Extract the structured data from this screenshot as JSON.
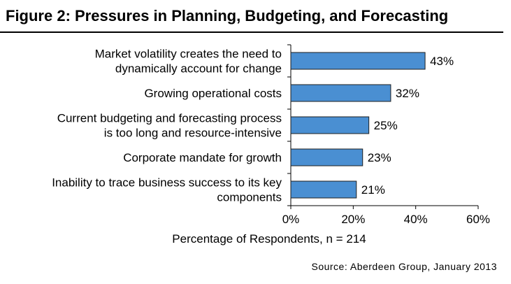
{
  "figure": {
    "title": "Figure 2: Pressures in Planning, Budgeting, and Forecasting",
    "source": "Source: Aberdeen Group, January 2013"
  },
  "colors": {
    "bar": "#4a8fd2",
    "bar_stroke": "#1f1f1f"
  },
  "chart_data": {
    "type": "bar",
    "orientation": "horizontal",
    "categories": [
      [
        "Market volatility creates the need to",
        "dynamically account for change"
      ],
      [
        "Growing operational costs"
      ],
      [
        "Current budgeting and forecasting process",
        "is too long and resource-intensive"
      ],
      [
        "Corporate mandate for growth"
      ],
      [
        "Inability to trace business success to its key",
        "components"
      ]
    ],
    "values": [
      43,
      32,
      25,
      23,
      21
    ],
    "data_labels": [
      "43%",
      "32%",
      "25%",
      "23%",
      "21%"
    ],
    "xlim": [
      0,
      60
    ],
    "xticks": [
      0,
      20,
      40,
      60
    ],
    "xtick_labels": [
      "0%",
      "20%",
      "40%",
      "60%"
    ],
    "xlabel": "Percentage of Respondents, n = 214",
    "grid": false
  }
}
